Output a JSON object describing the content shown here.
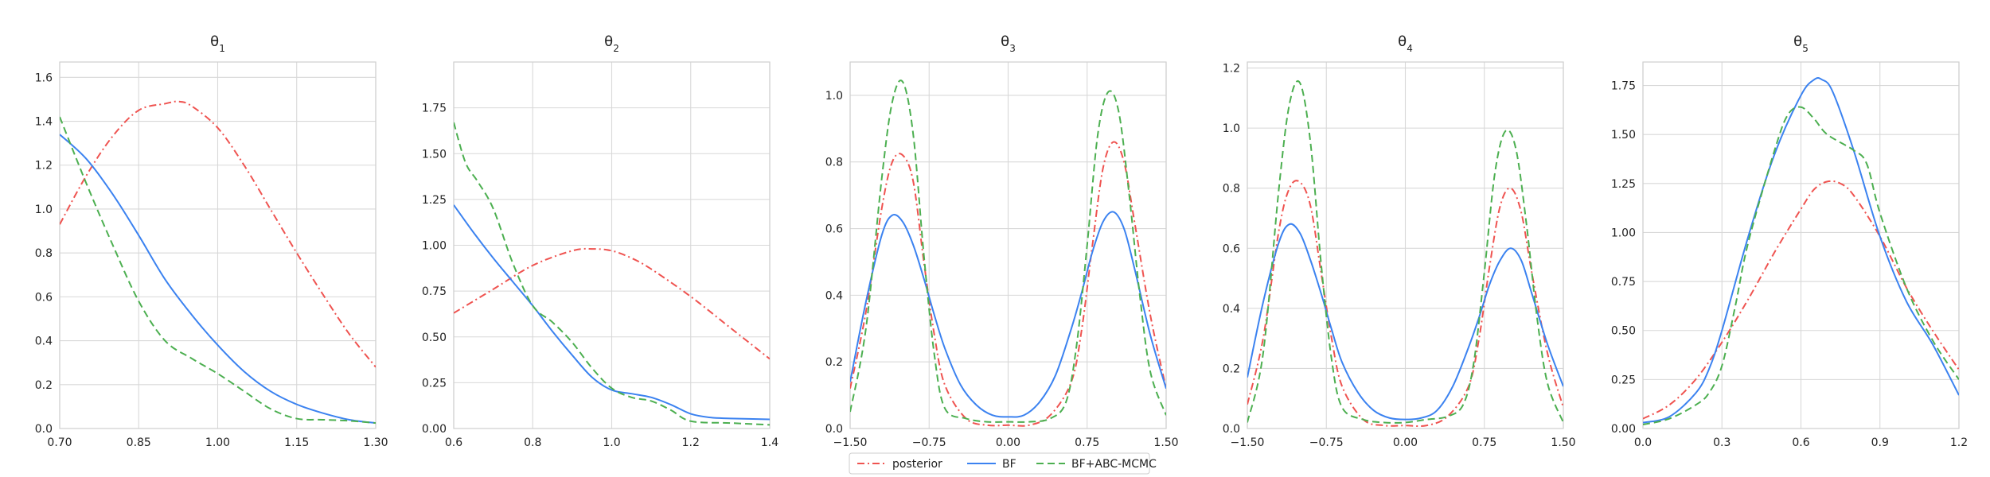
{
  "legend": {
    "entries": [
      {
        "label": "posterior",
        "color": "#ef5350",
        "dash": "dashdot"
      },
      {
        "label": "BF",
        "color": "#3b82f0",
        "dash": "solid"
      },
      {
        "label": "BF+ABC-MCMC",
        "color": "#4caf50",
        "dash": "dashed"
      }
    ],
    "placement": "bottom-center"
  },
  "chart_data": [
    {
      "type": "line",
      "title": "θ1",
      "title_base": "θ",
      "title_sub": "1",
      "xlim": [
        0.7,
        1.3
      ],
      "ylim": [
        0.0,
        1.67
      ],
      "xticks": [
        "0.70",
        "0.85",
        "1.00",
        "1.15",
        "1.30"
      ],
      "xtick_values": [
        0.7,
        0.85,
        1.0,
        1.15,
        1.3
      ],
      "yticks": [
        "0.0",
        "0.2",
        "0.4",
        "0.6",
        "0.8",
        "1.0",
        "1.2",
        "1.4",
        "1.6"
      ],
      "ytick_values": [
        0.0,
        0.2,
        0.4,
        0.6,
        0.8,
        1.0,
        1.2,
        1.4,
        1.6
      ],
      "grid": true,
      "series": [
        {
          "name": "posterior",
          "x": [
            0.7,
            0.75,
            0.8,
            0.85,
            0.9,
            0.925,
            0.95,
            1.0,
            1.05,
            1.1,
            1.15,
            1.2,
            1.25,
            1.3
          ],
          "y": [
            0.93,
            1.15,
            1.33,
            1.45,
            1.48,
            1.49,
            1.47,
            1.37,
            1.2,
            1.0,
            0.8,
            0.61,
            0.43,
            0.28
          ]
        },
        {
          "name": "BF",
          "x": [
            0.7,
            0.75,
            0.8,
            0.85,
            0.9,
            0.95,
            1.0,
            1.05,
            1.1,
            1.15,
            1.2,
            1.25,
            1.3
          ],
          "y": [
            1.34,
            1.23,
            1.07,
            0.88,
            0.68,
            0.52,
            0.38,
            0.26,
            0.17,
            0.11,
            0.07,
            0.04,
            0.025
          ]
        },
        {
          "name": "BF+ABC-MCMC",
          "x": [
            0.7,
            0.75,
            0.8,
            0.85,
            0.9,
            0.95,
            1.0,
            1.05,
            1.1,
            1.15,
            1.2,
            1.25,
            1.3
          ],
          "y": [
            1.42,
            1.12,
            0.84,
            0.58,
            0.4,
            0.32,
            0.25,
            0.17,
            0.09,
            0.045,
            0.04,
            0.035,
            0.025
          ]
        }
      ]
    },
    {
      "type": "line",
      "title": "θ2",
      "title_base": "θ",
      "title_sub": "2",
      "xlim": [
        0.6,
        1.4
      ],
      "ylim": [
        0.0,
        2.0
      ],
      "xticks": [
        "0.6",
        "0.8",
        "1.0",
        "1.2",
        "1.4"
      ],
      "xtick_values": [
        0.6,
        0.8,
        1.0,
        1.2,
        1.4
      ],
      "yticks": [
        "0.00",
        "0.25",
        "0.50",
        "0.75",
        "1.00",
        "1.25",
        "1.50",
        "1.75"
      ],
      "ytick_values": [
        0.0,
        0.25,
        0.5,
        0.75,
        1.0,
        1.25,
        1.5,
        1.75
      ],
      "grid": true,
      "series": [
        {
          "name": "posterior",
          "x": [
            0.6,
            0.7,
            0.8,
            0.9,
            0.95,
            1.0,
            1.05,
            1.1,
            1.2,
            1.3,
            1.4
          ],
          "y": [
            0.63,
            0.76,
            0.89,
            0.97,
            0.98,
            0.97,
            0.93,
            0.87,
            0.72,
            0.55,
            0.38
          ]
        },
        {
          "name": "BF",
          "x": [
            0.6,
            0.65,
            0.7,
            0.75,
            0.8,
            0.85,
            0.9,
            0.95,
            1.0,
            1.05,
            1.1,
            1.15,
            1.2,
            1.25,
            1.3,
            1.4
          ],
          "y": [
            1.22,
            1.07,
            0.93,
            0.8,
            0.67,
            0.53,
            0.4,
            0.28,
            0.21,
            0.19,
            0.17,
            0.13,
            0.08,
            0.06,
            0.055,
            0.05
          ]
        },
        {
          "name": "BF+ABC-MCMC",
          "x": [
            0.6,
            0.63,
            0.66,
            0.7,
            0.75,
            0.8,
            0.85,
            0.9,
            0.95,
            1.0,
            1.05,
            1.1,
            1.15,
            1.2,
            1.3,
            1.4
          ],
          "y": [
            1.67,
            1.45,
            1.35,
            1.2,
            0.9,
            0.67,
            0.58,
            0.47,
            0.33,
            0.22,
            0.17,
            0.15,
            0.1,
            0.04,
            0.03,
            0.02
          ]
        }
      ]
    },
    {
      "type": "line",
      "title": "θ3",
      "title_base": "θ",
      "title_sub": "3",
      "xlim": [
        -1.5,
        1.5
      ],
      "ylim": [
        0.0,
        1.1
      ],
      "xticks": [
        "−1.50",
        "−0.75",
        "0.00",
        "0.75",
        "1.50"
      ],
      "xtick_values": [
        -1.5,
        -0.75,
        0.0,
        0.75,
        1.5
      ],
      "yticks": [
        "0.0",
        "0.2",
        "0.4",
        "0.6",
        "0.8",
        "1.0"
      ],
      "ytick_values": [
        0.0,
        0.2,
        0.4,
        0.6,
        0.8,
        1.0
      ],
      "grid": true,
      "series": [
        {
          "name": "posterior",
          "x": [
            -1.5,
            -1.35,
            -1.2,
            -1.1,
            -1.0,
            -0.9,
            -0.8,
            -0.7,
            -0.6,
            -0.4,
            -0.2,
            0.0,
            0.2,
            0.4,
            0.6,
            0.7,
            0.8,
            0.9,
            1.0,
            1.1,
            1.2,
            1.35,
            1.5
          ],
          "y": [
            0.12,
            0.35,
            0.66,
            0.8,
            0.82,
            0.74,
            0.5,
            0.28,
            0.13,
            0.03,
            0.01,
            0.01,
            0.01,
            0.04,
            0.14,
            0.3,
            0.55,
            0.78,
            0.86,
            0.8,
            0.62,
            0.34,
            0.12
          ]
        },
        {
          "name": "BF",
          "x": [
            -1.5,
            -1.35,
            -1.2,
            -1.1,
            -1.0,
            -0.9,
            -0.8,
            -0.7,
            -0.6,
            -0.45,
            -0.3,
            -0.15,
            0.0,
            0.15,
            0.3,
            0.45,
            0.6,
            0.7,
            0.8,
            0.9,
            1.0,
            1.1,
            1.2,
            1.35,
            1.5
          ],
          "y": [
            0.14,
            0.38,
            0.58,
            0.64,
            0.62,
            0.55,
            0.45,
            0.34,
            0.24,
            0.13,
            0.07,
            0.04,
            0.035,
            0.04,
            0.08,
            0.16,
            0.3,
            0.41,
            0.53,
            0.62,
            0.65,
            0.6,
            0.48,
            0.28,
            0.12
          ]
        },
        {
          "name": "BF+ABC-MCMC",
          "x": [
            -1.5,
            -1.35,
            -1.2,
            -1.1,
            -1.0,
            -0.9,
            -0.8,
            -0.7,
            -0.6,
            -0.4,
            -0.2,
            0.0,
            0.2,
            0.4,
            0.55,
            0.65,
            0.75,
            0.85,
            0.95,
            1.05,
            1.15,
            1.25,
            1.35,
            1.5
          ],
          "y": [
            0.05,
            0.3,
            0.75,
            0.98,
            1.04,
            0.88,
            0.52,
            0.22,
            0.06,
            0.03,
            0.02,
            0.02,
            0.02,
            0.03,
            0.08,
            0.25,
            0.55,
            0.88,
            1.01,
            0.95,
            0.7,
            0.4,
            0.17,
            0.04
          ]
        }
      ]
    },
    {
      "type": "line",
      "title": "θ4",
      "title_base": "θ",
      "title_sub": "4",
      "xlim": [
        -1.5,
        1.5
      ],
      "ylim": [
        0.0,
        1.22
      ],
      "xticks": [
        "−1.50",
        "−0.75",
        "0.00",
        "0.75",
        "1.50"
      ],
      "xtick_values": [
        -1.5,
        -0.75,
        0.0,
        0.75,
        1.5
      ],
      "yticks": [
        "0.0",
        "0.2",
        "0.4",
        "0.6",
        "0.8",
        "1.0",
        "1.2"
      ],
      "ytick_values": [
        0.0,
        0.2,
        0.4,
        0.6,
        0.8,
        1.0,
        1.2
      ],
      "grid": true,
      "series": [
        {
          "name": "posterior",
          "x": [
            -1.5,
            -1.35,
            -1.2,
            -1.1,
            -1.0,
            -0.9,
            -0.8,
            -0.7,
            -0.6,
            -0.4,
            -0.2,
            0.0,
            0.2,
            0.4,
            0.6,
            0.7,
            0.8,
            0.9,
            1.0,
            1.1,
            1.2,
            1.35,
            1.5
          ],
          "y": [
            0.08,
            0.3,
            0.66,
            0.8,
            0.82,
            0.74,
            0.52,
            0.3,
            0.14,
            0.03,
            0.01,
            0.01,
            0.01,
            0.04,
            0.14,
            0.3,
            0.54,
            0.74,
            0.8,
            0.72,
            0.52,
            0.25,
            0.07
          ]
        },
        {
          "name": "BF",
          "x": [
            -1.5,
            -1.35,
            -1.2,
            -1.1,
            -1.0,
            -0.9,
            -0.8,
            -0.7,
            -0.6,
            -0.45,
            -0.3,
            -0.15,
            0.0,
            0.15,
            0.3,
            0.45,
            0.6,
            0.7,
            0.8,
            0.9,
            1.0,
            1.1,
            1.2,
            1.35,
            1.5
          ],
          "y": [
            0.17,
            0.42,
            0.62,
            0.68,
            0.65,
            0.56,
            0.45,
            0.33,
            0.22,
            0.12,
            0.06,
            0.035,
            0.03,
            0.035,
            0.06,
            0.14,
            0.27,
            0.37,
            0.48,
            0.56,
            0.6,
            0.56,
            0.45,
            0.28,
            0.14
          ]
        },
        {
          "name": "BF+ABC-MCMC",
          "x": [
            -1.5,
            -1.35,
            -1.2,
            -1.1,
            -1.0,
            -0.9,
            -0.8,
            -0.7,
            -0.6,
            -0.4,
            -0.2,
            0.0,
            0.2,
            0.4,
            0.55,
            0.65,
            0.75,
            0.85,
            0.95,
            1.05,
            1.15,
            1.25,
            1.35,
            1.5
          ],
          "y": [
            0.02,
            0.25,
            0.8,
            1.08,
            1.15,
            0.95,
            0.55,
            0.23,
            0.07,
            0.03,
            0.02,
            0.02,
            0.03,
            0.04,
            0.08,
            0.22,
            0.52,
            0.85,
            0.99,
            0.93,
            0.68,
            0.37,
            0.15,
            0.02
          ]
        }
      ]
    },
    {
      "type": "line",
      "title": "θ5",
      "title_base": "θ",
      "title_sub": "5",
      "xlim": [
        0.0,
        1.2
      ],
      "ylim": [
        0.0,
        1.87
      ],
      "xticks": [
        "0.0",
        "0.3",
        "0.6",
        "0.9",
        "1.2"
      ],
      "xtick_values": [
        0.0,
        0.3,
        0.6,
        0.9,
        1.2
      ],
      "yticks": [
        "0.00",
        "0.25",
        "0.50",
        "0.75",
        "1.00",
        "1.25",
        "1.50",
        "1.75"
      ],
      "ytick_values": [
        0.0,
        0.25,
        0.5,
        0.75,
        1.0,
        1.25,
        1.5,
        1.75
      ],
      "grid": true,
      "series": [
        {
          "name": "posterior",
          "x": [
            0.0,
            0.1,
            0.2,
            0.3,
            0.4,
            0.5,
            0.6,
            0.65,
            0.7,
            0.75,
            0.8,
            0.9,
            1.0,
            1.1,
            1.2
          ],
          "y": [
            0.05,
            0.12,
            0.25,
            0.44,
            0.66,
            0.9,
            1.12,
            1.22,
            1.26,
            1.25,
            1.19,
            0.98,
            0.72,
            0.5,
            0.3
          ]
        },
        {
          "name": "BF",
          "x": [
            0.0,
            0.1,
            0.2,
            0.25,
            0.3,
            0.4,
            0.5,
            0.6,
            0.65,
            0.68,
            0.72,
            0.8,
            0.9,
            1.0,
            1.1,
            1.2
          ],
          "y": [
            0.03,
            0.06,
            0.18,
            0.3,
            0.5,
            0.98,
            1.4,
            1.7,
            1.78,
            1.78,
            1.72,
            1.42,
            0.98,
            0.65,
            0.43,
            0.17
          ]
        },
        {
          "name": "BF+ABC-MCMC",
          "x": [
            0.0,
            0.1,
            0.2,
            0.25,
            0.3,
            0.35,
            0.4,
            0.5,
            0.55,
            0.6,
            0.65,
            0.7,
            0.8,
            0.85,
            0.9,
            1.0,
            1.1,
            1.2
          ],
          "y": [
            0.02,
            0.05,
            0.12,
            0.18,
            0.32,
            0.62,
            0.95,
            1.42,
            1.6,
            1.64,
            1.58,
            1.5,
            1.42,
            1.35,
            1.1,
            0.72,
            0.45,
            0.25
          ]
        }
      ]
    }
  ]
}
